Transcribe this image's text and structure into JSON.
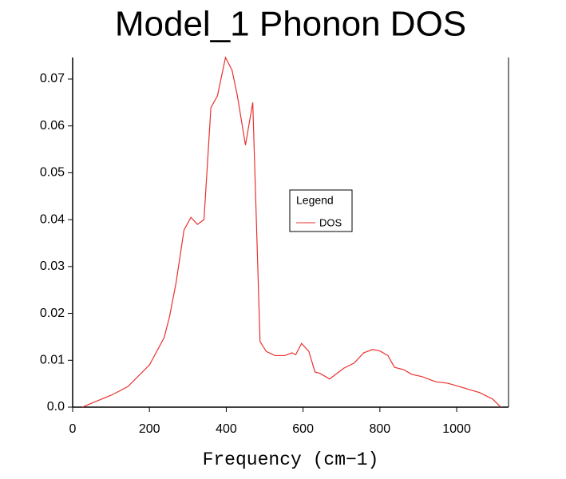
{
  "chart_data": {
    "type": "line",
    "title": "Model_1 Phonon DOS",
    "x_label": "Frequency (cm−1)",
    "x": [
      25,
      60,
      102,
      144,
      200,
      238,
      252,
      269,
      290,
      308,
      325,
      342,
      360,
      377,
      398,
      415,
      429,
      450,
      469,
      488,
      504,
      527,
      552,
      571,
      581,
      596,
      615,
      631,
      644,
      669,
      706,
      733,
      758,
      781,
      800,
      821,
      838,
      862,
      883,
      910,
      946,
      977,
      1019,
      1060,
      1094,
      1115
    ],
    "series": [
      {
        "name": "DOS",
        "color": "#e8312f",
        "values": [
          0,
          0.0012,
          0.0026,
          0.0044,
          0.009,
          0.0148,
          0.0192,
          0.0264,
          0.0378,
          0.0405,
          0.039,
          0.04,
          0.0639,
          0.0664,
          0.0746,
          0.0719,
          0.0664,
          0.0559,
          0.065,
          0.014,
          0.0119,
          0.011,
          0.011,
          0.0116,
          0.0112,
          0.0136,
          0.0119,
          0.0075,
          0.0072,
          0.006,
          0.0083,
          0.0094,
          0.0116,
          0.0123,
          0.012,
          0.011,
          0.0085,
          0.008,
          0.007,
          0.0065,
          0.0054,
          0.0051,
          0.0041,
          0.0031,
          0.0017,
          0
        ]
      }
    ],
    "legend_title": "Legend",
    "xlim": [
      0,
      1135
    ],
    "ylim": [
      0,
      0.0746
    ],
    "xticks": [
      0,
      200,
      400,
      600,
      800,
      1000
    ],
    "yticks": [
      {
        "value": 0,
        "label": "0.0"
      },
      0.01,
      0.02,
      0.03,
      0.04,
      0.05,
      0.06,
      0.07
    ]
  }
}
